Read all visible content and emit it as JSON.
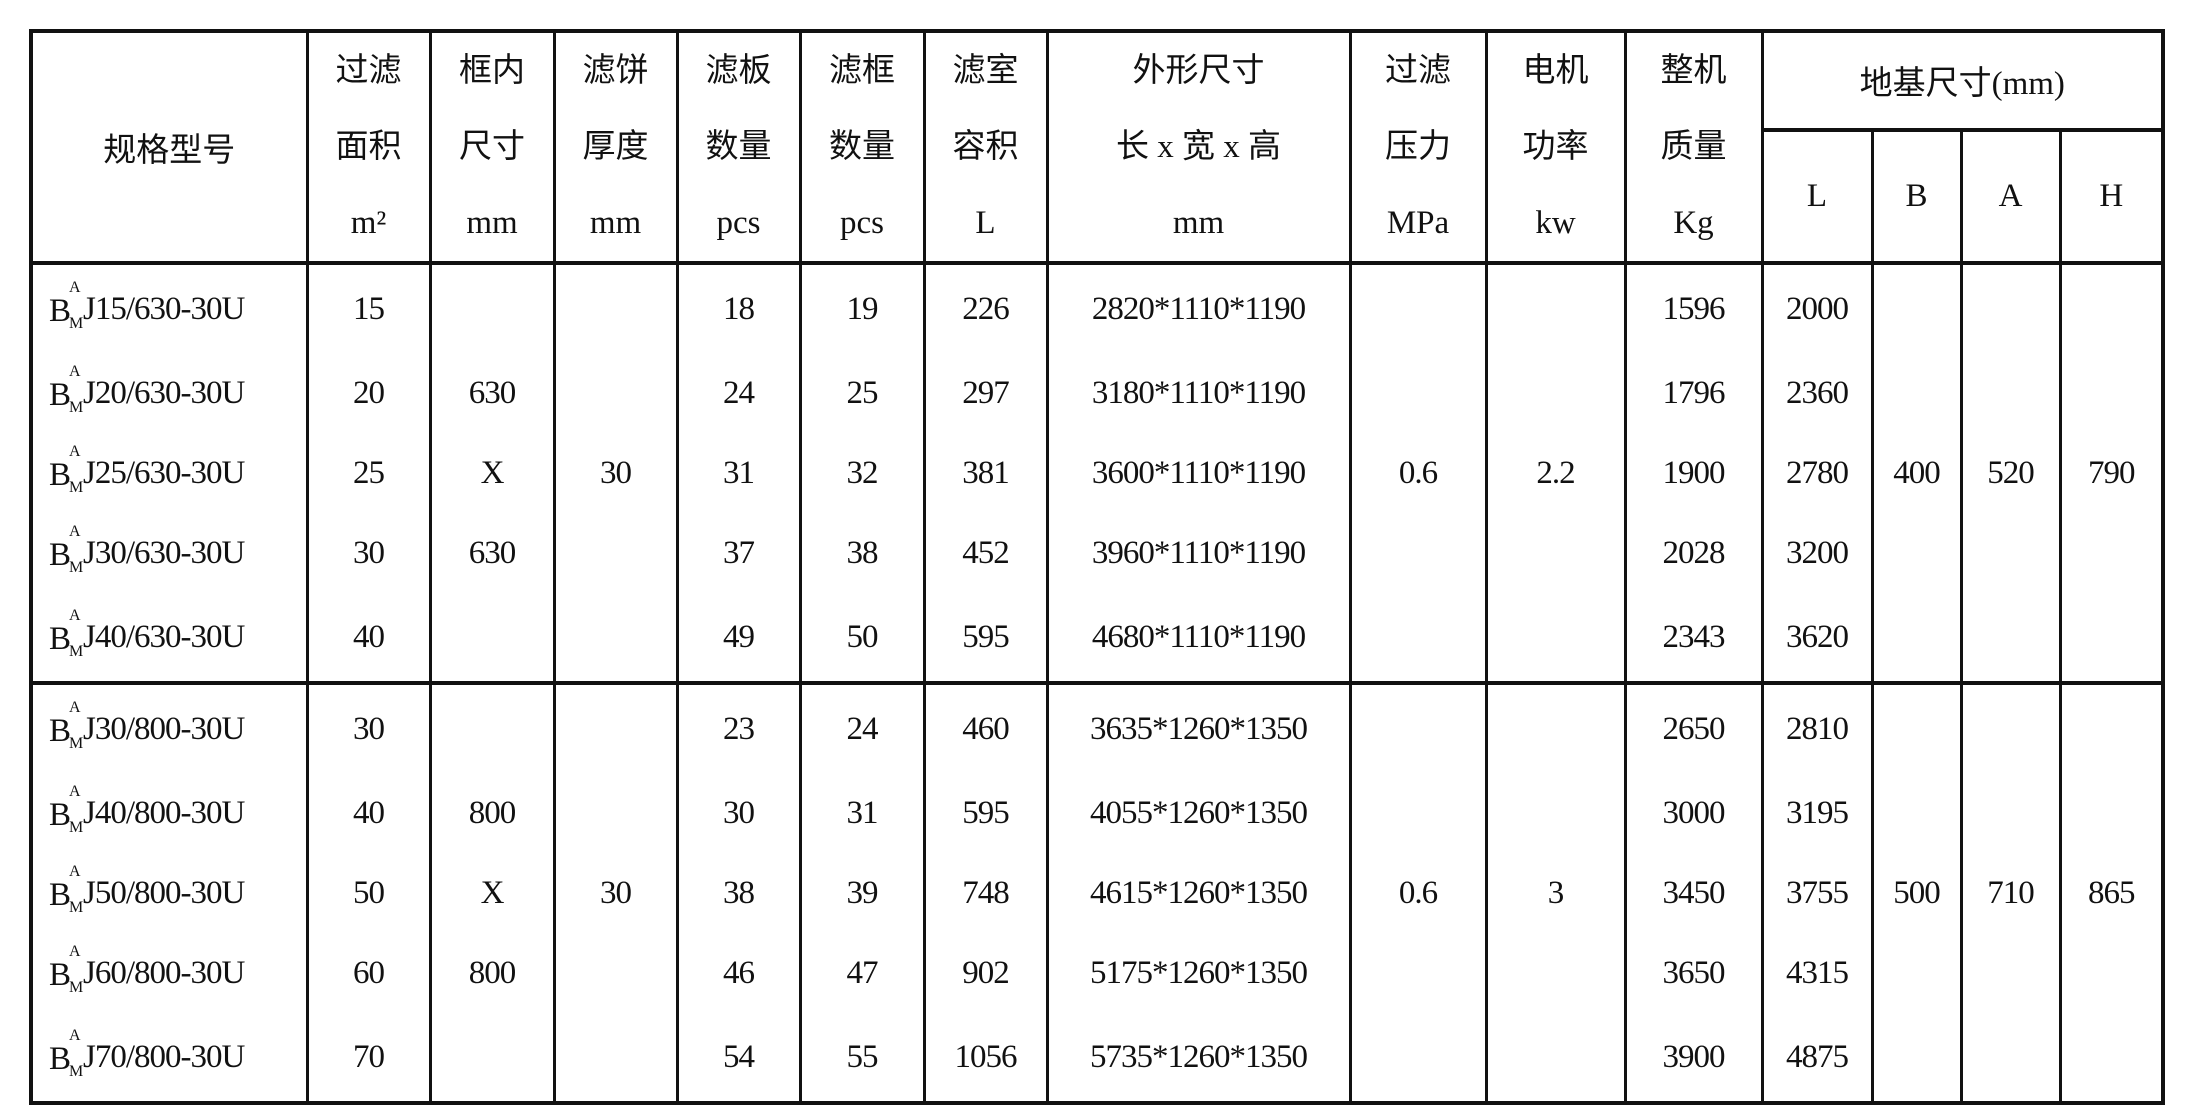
{
  "header": {
    "model": "规格型号",
    "area": [
      "过滤",
      "面积",
      "m²"
    ],
    "frame_size": [
      "框内",
      "尺寸",
      "mm"
    ],
    "cake": [
      "滤饼",
      "厚度",
      "mm"
    ],
    "plates": [
      "滤板",
      "数量",
      "pcs"
    ],
    "frames": [
      "滤框",
      "数量",
      "pcs"
    ],
    "volume": [
      "滤室",
      "容积",
      "L"
    ],
    "dims": [
      "外形尺寸",
      "长 x 宽 x 高",
      "mm"
    ],
    "pressure": [
      "过滤",
      "压力",
      "MPa"
    ],
    "power": [
      "电机",
      "功率",
      "kw"
    ],
    "weight": [
      "整机",
      "质量",
      "Kg"
    ],
    "foundation": "地基尺寸(mm)",
    "foundation_cols": [
      "L",
      "B",
      "A",
      "H"
    ]
  },
  "groups": [
    {
      "rows": [
        {
          "model_b": "B",
          "model_sup": "A",
          "model_sub": "M",
          "model_rest": "J15/630-30U",
          "area": "15",
          "frame": "",
          "cake": "",
          "plates": "18",
          "frames": "19",
          "volume": "226",
          "dims": "2820*1110*1190",
          "pressure": "",
          "power": "",
          "weight": "1596",
          "L": "2000",
          "B": "",
          "A": "",
          "H": ""
        },
        {
          "model_b": "B",
          "model_sup": "A",
          "model_sub": "M",
          "model_rest": "J20/630-30U",
          "area": "20",
          "frame": "630",
          "cake": "",
          "plates": "24",
          "frames": "25",
          "volume": "297",
          "dims": "3180*1110*1190",
          "pressure": "",
          "power": "",
          "weight": "1796",
          "L": "2360",
          "B": "",
          "A": "",
          "H": ""
        },
        {
          "model_b": "B",
          "model_sup": "A",
          "model_sub": "M",
          "model_rest": "J25/630-30U",
          "area": "25",
          "frame": "X",
          "cake": "30",
          "plates": "31",
          "frames": "32",
          "volume": "381",
          "dims": "3600*1110*1190",
          "pressure": "0.6",
          "power": "2.2",
          "weight": "1900",
          "L": "2780",
          "B": "400",
          "A": "520",
          "H": "790"
        },
        {
          "model_b": "B",
          "model_sup": "A",
          "model_sub": "M",
          "model_rest": "J30/630-30U",
          "area": "30",
          "frame": "630",
          "cake": "",
          "plates": "37",
          "frames": "38",
          "volume": "452",
          "dims": "3960*1110*1190",
          "pressure": "",
          "power": "",
          "weight": "2028",
          "L": "3200",
          "B": "",
          "A": "",
          "H": ""
        },
        {
          "model_b": "B",
          "model_sup": "A",
          "model_sub": "M",
          "model_rest": "J40/630-30U",
          "area": "40",
          "frame": "",
          "cake": "",
          "plates": "49",
          "frames": "50",
          "volume": "595",
          "dims": "4680*1110*1190",
          "pressure": "",
          "power": "",
          "weight": "2343",
          "L": "3620",
          "B": "",
          "A": "",
          "H": ""
        }
      ]
    },
    {
      "rows": [
        {
          "model_b": "B",
          "model_sup": "A",
          "model_sub": "M",
          "model_rest": "J30/800-30U",
          "area": "30",
          "frame": "",
          "cake": "",
          "plates": "23",
          "frames": "24",
          "volume": "460",
          "dims": "3635*1260*1350",
          "pressure": "",
          "power": "",
          "weight": "2650",
          "L": "2810",
          "B": "",
          "A": "",
          "H": ""
        },
        {
          "model_b": "B",
          "model_sup": "A",
          "model_sub": "M",
          "model_rest": "J40/800-30U",
          "area": "40",
          "frame": "800",
          "cake": "",
          "plates": "30",
          "frames": "31",
          "volume": "595",
          "dims": "4055*1260*1350",
          "pressure": "",
          "power": "",
          "weight": "3000",
          "L": "3195",
          "B": "",
          "A": "",
          "H": ""
        },
        {
          "model_b": "B",
          "model_sup": "A",
          "model_sub": "M",
          "model_rest": "J50/800-30U",
          "area": "50",
          "frame": "X",
          "cake": "30",
          "plates": "38",
          "frames": "39",
          "volume": "748",
          "dims": "4615*1260*1350",
          "pressure": "0.6",
          "power": "3",
          "weight": "3450",
          "L": "3755",
          "B": "500",
          "A": "710",
          "H": "865"
        },
        {
          "model_b": "B",
          "model_sup": "A",
          "model_sub": "M",
          "model_rest": "J60/800-30U",
          "area": "60",
          "frame": "800",
          "cake": "",
          "plates": "46",
          "frames": "47",
          "volume": "902",
          "dims": "5175*1260*1350",
          "pressure": "",
          "power": "",
          "weight": "3650",
          "L": "4315",
          "B": "",
          "A": "",
          "H": ""
        },
        {
          "model_b": "B",
          "model_sup": "A",
          "model_sub": "M",
          "model_rest": "J70/800-30U",
          "area": "70",
          "frame": "",
          "cake": "",
          "plates": "54",
          "frames": "55",
          "volume": "1056",
          "dims": "5735*1260*1350",
          "pressure": "",
          "power": "",
          "weight": "3900",
          "L": "4875",
          "B": "",
          "A": "",
          "H": ""
        }
      ]
    }
  ]
}
